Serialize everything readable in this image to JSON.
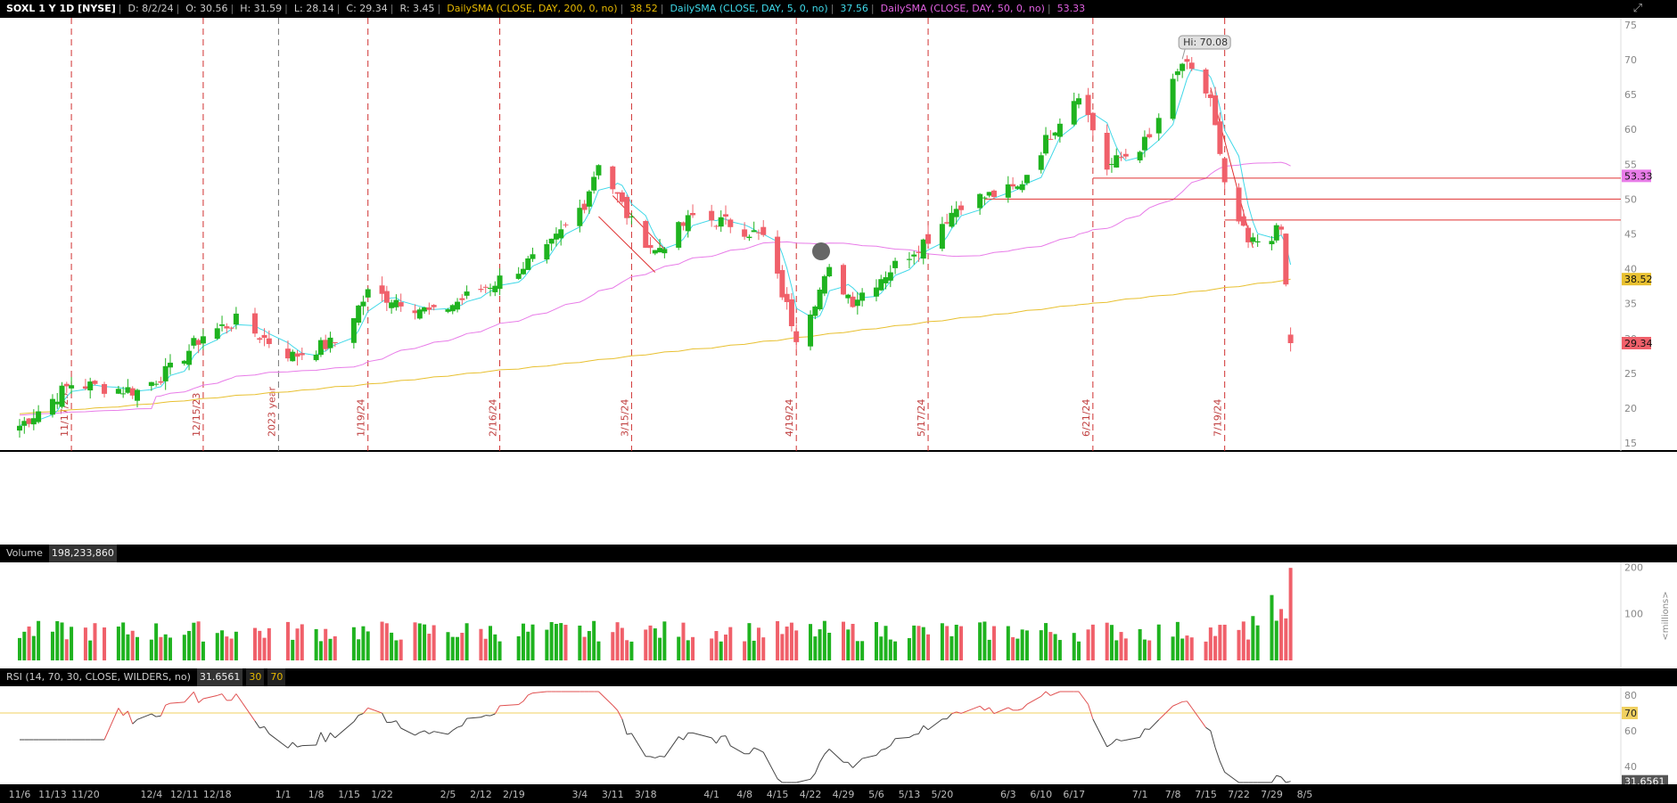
{
  "header": {
    "ticker": "SOXL 1 Y 1D [NYSE]",
    "date": "D: 8/2/24",
    "open": "O: 30.56",
    "high": "H: 31.59",
    "low": "L: 28.14",
    "close": "C: 29.34",
    "range": "R: 3.45",
    "sma200_label": "DailySMA (CLOSE, DAY, 200, 0, no)",
    "sma200_value": "38.52",
    "sma5_label": "DailySMA (CLOSE, DAY, 5, 0, no)",
    "sma5_value": "37.56",
    "sma50_label": "DailySMA (CLOSE, DAY, 50, 0, no)",
    "sma50_value": "53.33"
  },
  "volume_panel": {
    "label": "Volume",
    "value": "198,233,860",
    "unit": "<millions>"
  },
  "rsi_panel": {
    "label": "RSI (14, 70, 30, CLOSE, WILDERS, no)",
    "value": "31.6561",
    "os": "30",
    "ob": "70"
  },
  "hi_label": "Hi: 70.08",
  "colors": {
    "up": "#1fb31f",
    "down": "#f0606a",
    "sma200": "#e8c030",
    "sma5": "#40d8e8",
    "sma50": "#e87ce8",
    "redline": "#e03030"
  },
  "chart_data": [
    {
      "type": "candlestick",
      "title": "SOXL 1 Y 1D [NYSE]",
      "ylim": [
        14,
        76
      ],
      "y_ticks": [
        75,
        70,
        65,
        60,
        55,
        50,
        45,
        40,
        35,
        30,
        25,
        20,
        15
      ],
      "x_ticks": [
        "11/6",
        "11/13",
        "11/20",
        "12/4",
        "12/11",
        "12/18",
        "1/1",
        "1/8",
        "1/15",
        "1/22",
        "2/5",
        "2/12",
        "2/19",
        "3/4",
        "3/11",
        "3/18",
        "4/1",
        "4/8",
        "4/15",
        "4/22",
        "4/29",
        "5/6",
        "5/13",
        "5/20",
        "6/3",
        "6/10",
        "6/17",
        "7/1",
        "7/8",
        "7/15",
        "7/22",
        "7/29",
        "8/5"
      ],
      "event_markers": [
        "11/17/23",
        "12/15/23",
        "2023 year",
        "1/19/24",
        "2/16/24",
        "3/15/24",
        "4/19/24",
        "5/17/24",
        "6/21/24",
        "7/19/24"
      ],
      "price_tags": [
        {
          "label": "53.33",
          "color": "#e87ce8"
        },
        {
          "label": "38.52",
          "color": "#e8c030"
        },
        {
          "label": "29.34",
          "color": "#f0606a"
        }
      ],
      "anchors": [
        {
          "date": "11/6",
          "close": 17.5
        },
        {
          "date": "11/17",
          "close": 23.5
        },
        {
          "date": "12/1",
          "close": 22.5
        },
        {
          "date": "12/8",
          "close": 25.5
        },
        {
          "date": "12/15",
          "close": 30.5
        },
        {
          "date": "12/22",
          "close": 32.5
        },
        {
          "date": "1/3",
          "close": 27.5
        },
        {
          "date": "1/12",
          "close": 29.5
        },
        {
          "date": "1/19",
          "close": 36.5
        },
        {
          "date": "1/26",
          "close": 35.5
        },
        {
          "date": "2/2",
          "close": 33.5
        },
        {
          "date": "2/16",
          "close": 38.5
        },
        {
          "date": "2/26",
          "close": 42.5
        },
        {
          "date": "3/5",
          "close": 49.5
        },
        {
          "date": "3/8",
          "close": 55.5
        },
        {
          "date": "3/15",
          "close": 46.5
        },
        {
          "date": "3/20",
          "close": 42.5
        },
        {
          "date": "3/28",
          "close": 47.5
        },
        {
          "date": "4/5",
          "close": 46.5
        },
        {
          "date": "4/12",
          "close": 44.5
        },
        {
          "date": "4/19",
          "close": 30.5
        },
        {
          "date": "4/26",
          "close": 39.5
        },
        {
          "date": "5/1",
          "close": 35.5
        },
        {
          "date": "5/10",
          "close": 40.5
        },
        {
          "date": "5/17",
          "close": 44.5
        },
        {
          "date": "5/24",
          "close": 49.5
        },
        {
          "date": "6/5",
          "close": 51.5
        },
        {
          "date": "6/12",
          "close": 59.5
        },
        {
          "date": "6/18",
          "close": 65.5
        },
        {
          "date": "6/24",
          "close": 54.5
        },
        {
          "date": "7/3",
          "close": 58.5
        },
        {
          "date": "7/10",
          "close": 69.5
        },
        {
          "date": "7/16",
          "close": 64.5
        },
        {
          "date": "7/19",
          "close": 51.5
        },
        {
          "date": "7/24",
          "close": 43.5
        },
        {
          "date": "7/31",
          "close": 45.5
        },
        {
          "date": "8/2",
          "close": 29.34
        }
      ],
      "sma200": {
        "start": 19.2,
        "end": 38.52
      },
      "sma50_end": 53.33,
      "sma5_end": 37.56
    },
    {
      "type": "bar",
      "title": "Volume",
      "unit": "millions",
      "y_ticks": [
        200,
        100
      ],
      "ylim": [
        0,
        210
      ],
      "last_values": [
        95,
        75,
        140,
        85,
        110,
        90,
        198.2
      ]
    },
    {
      "type": "line",
      "title": "RSI (14, 70, 30, CLOSE, WILDERS, no)",
      "y_ticks": [
        80,
        70,
        60,
        40
      ],
      "ylim": [
        30,
        85
      ],
      "last": 31.6561
    }
  ]
}
